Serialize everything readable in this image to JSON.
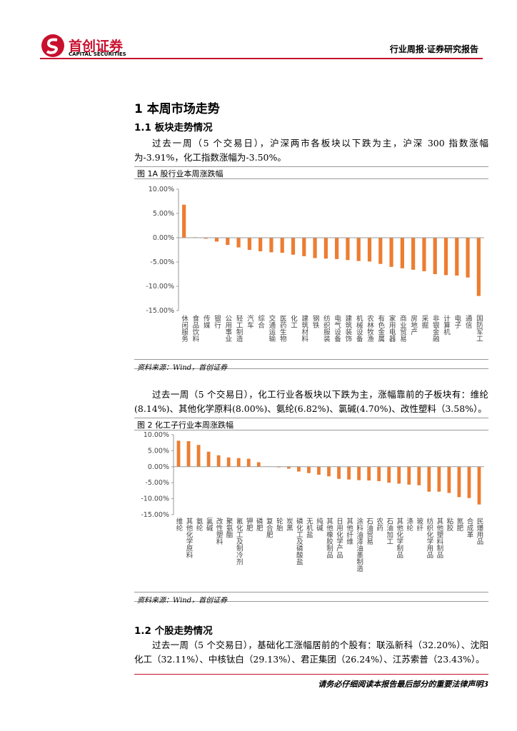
{
  "header": {
    "logo_cn": "首创证券",
    "logo_en": "CAPITAL SECURITIES",
    "report_type": "行业周报·证券研究报告"
  },
  "sections": [
    {
      "heading": "1 本周市场走势"
    },
    {
      "heading": "1.1  板块走势情况"
    },
    {
      "heading": "1.2  个股走势情况"
    }
  ],
  "paragraphs": [
    "过去一周（5 个交易日），沪深两市各板块以下跌为主，沪深 300 指数涨幅为-3.91%，化工指数涨幅为-3.50%。",
    "过去一周（5 个交易日），化工行业各板块以下跌为主，涨幅靠前的子板块有：维纶(8.14%)、其他化学原料(8.00%)、氨纶(6.82%)、氯碱(4.70%)、改性塑料（3.58%）。",
    "过去一周（5 个交易日），基础化工涨幅居前的个股有：联泓新科（32.20%）、沈阳化工（32.11%）、中核钛白（29.13%）、君正集团（26.24%）、江苏索普（23.43%）。"
  ],
  "chart_data": [
    {
      "type": "bar",
      "title": "图 1A 股行业本周涨跌幅",
      "source": "资料来源：Wind，首创证券",
      "color": "#ed7d31",
      "categories": [
        "休闲服务",
        "食品饮料",
        "传媒",
        "银行",
        "公用事业",
        "轻工制造",
        "汽车",
        "综合",
        "交通运输",
        "医药生物",
        "化工",
        "建筑材料",
        "钢铁",
        "纺织服装",
        "电气设备",
        "建筑装饰",
        "机械设备",
        "农林牧渔",
        "有色金属",
        "家用电器",
        "商业贸易",
        "房地产",
        "采掘",
        "非银金融",
        "计算机",
        "电子",
        "通信",
        "国防军工"
      ],
      "values": [
        6.8,
        0.1,
        -0.2,
        -0.8,
        -1.5,
        -2.0,
        -2.5,
        -2.8,
        -3.0,
        -3.1,
        -3.5,
        -3.8,
        -4.2,
        -4.3,
        -4.4,
        -4.6,
        -4.8,
        -4.9,
        -5.4,
        -6.0,
        -6.3,
        -6.6,
        -6.9,
        -7.5,
        -7.7,
        -7.8,
        -8.2,
        -12.0
      ],
      "ylim": [
        -15,
        10
      ],
      "yticks": [
        {
          "value": 10,
          "label": "10.00%"
        },
        {
          "value": 5,
          "label": "5.00%"
        },
        {
          "value": 0,
          "label": "0.00%"
        },
        {
          "value": -5,
          "label": "-5.00%"
        },
        {
          "value": -10,
          "label": "-10.00%"
        },
        {
          "value": -15,
          "label": "-15.00%"
        }
      ]
    },
    {
      "type": "bar",
      "title": "图 2 化工子行业本周涨跌幅",
      "source": "资料来源：Wind，首创证券",
      "color": "#ed7d31",
      "categories": [
        "维纶",
        "其他化学原料",
        "氨纶",
        "氯碱",
        "改性塑料",
        "聚氨酯",
        "氟化工及制冷剂",
        "钾肥",
        "磷肥",
        "复合肥",
        "轮胎",
        "炭黑",
        "磷化工及磷酸盐",
        "无机盐",
        "纯碱",
        "其他橡胶制品",
        "日用化学产品",
        "其他纤维",
        "涂料油漆油墨制造",
        "石油贸易",
        "农药",
        "石油加工",
        "其他化学制品",
        "涤纶",
        "玻纤",
        "纺织化学用品",
        "其他塑料制品",
        "粘胶",
        "氮肥",
        "合成革",
        "民爆用品"
      ],
      "values": [
        8.14,
        8.0,
        6.82,
        4.7,
        3.58,
        2.9,
        2.7,
        2.5,
        1.4,
        0.1,
        -0.2,
        -0.6,
        -1.5,
        -2.0,
        -2.5,
        -3.0,
        -3.8,
        -4.0,
        -4.2,
        -4.3,
        -4.5,
        -5.0,
        -5.3,
        -5.6,
        -5.8,
        -7.8,
        -7.8,
        -8.2,
        -9.5,
        -9.8,
        -11.8
      ],
      "ylim": [
        -15,
        10
      ],
      "yticks": [
        {
          "value": 10,
          "label": "10.00%"
        },
        {
          "value": 5,
          "label": "5.00%"
        },
        {
          "value": 0,
          "label": "0.00%"
        },
        {
          "value": -5,
          "label": "-5.00%"
        },
        {
          "value": -10,
          "label": "-10.00%"
        },
        {
          "value": -15,
          "label": "-15.00%"
        }
      ]
    }
  ],
  "footer": "请务必仔细阅读本报告最后部分的重要法律声明3"
}
